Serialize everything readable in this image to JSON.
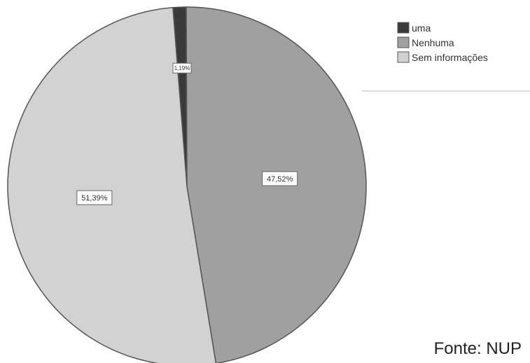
{
  "chart_data": {
    "type": "pie",
    "slices": [
      {
        "label": "uma",
        "value": 1.19,
        "value_label": "1,19%",
        "color": "#3a3a3a"
      },
      {
        "label": "Nenhuma",
        "value": 47.52,
        "value_label": "47,52%",
        "color": "#a0a0a0"
      },
      {
        "label": "Sem informações",
        "value": 51.39,
        "value_label": "51,39%",
        "color": "#d2d2d2"
      }
    ],
    "legend_position": "top-right",
    "start_angle": "top",
    "direction": "clockwise"
  },
  "source_note": "Fonte: NUP"
}
